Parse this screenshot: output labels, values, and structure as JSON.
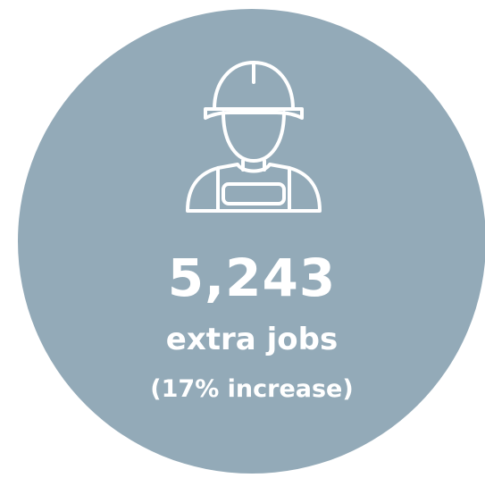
{
  "stat": {
    "value": "5,243",
    "label": "extra jobs",
    "detail": "(17% increase)"
  },
  "icon": "construction-worker-icon",
  "colors": {
    "circle": "#93aab8",
    "foreground": "#ffffff"
  }
}
